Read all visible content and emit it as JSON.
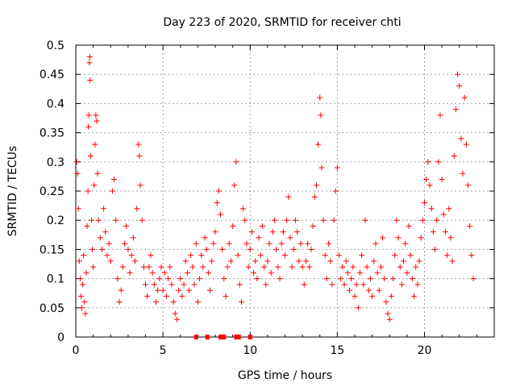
{
  "chart_data": {
    "type": "scatter",
    "title": "Day 223 of 2020, SRMTID for receiver chti",
    "xlabel": "GPS time / hours",
    "ylabel": "SRMTID / TECUs",
    "xlim": [
      0,
      24
    ],
    "ylim": [
      0,
      0.5
    ],
    "x_ticks": [
      0,
      5,
      10,
      15,
      20
    ],
    "x_tick_labels": [
      "0",
      "5",
      "10",
      "15",
      "20"
    ],
    "y_ticks": [
      0,
      0.05,
      0.1,
      0.15,
      0.2,
      0.25,
      0.3,
      0.35,
      0.4,
      0.45,
      0.5
    ],
    "y_tick_labels": [
      "0",
      "0.05",
      "0.1",
      "0.15",
      "0.2",
      "0.25",
      "0.3",
      "0.35",
      "0.4",
      "0.45",
      "0.5"
    ],
    "grid": true,
    "legend": "none",
    "marker": "plus",
    "marker_color": "#ff0000",
    "series": [
      {
        "name": "",
        "points": [
          [
            0.05,
            0.3
          ],
          [
            0.1,
            0.28
          ],
          [
            0.15,
            0.22
          ],
          [
            0.2,
            0.13
          ],
          [
            0.25,
            0.1
          ],
          [
            0.3,
            0.07
          ],
          [
            0.35,
            0.05
          ],
          [
            0.4,
            0.09
          ],
          [
            0.45,
            0.14
          ],
          [
            0.5,
            0.06
          ],
          [
            0.55,
            0.04
          ],
          [
            0.6,
            0.11
          ],
          [
            0.65,
            0.19
          ],
          [
            0.7,
            0.25
          ],
          [
            0.72,
            0.36
          ],
          [
            0.75,
            0.38
          ],
          [
            0.78,
            0.47
          ],
          [
            0.8,
            0.48
          ],
          [
            0.82,
            0.44
          ],
          [
            0.85,
            0.31
          ],
          [
            0.9,
            0.2
          ],
          [
            0.95,
            0.15
          ],
          [
            1.0,
            0.12
          ],
          [
            1.05,
            0.26
          ],
          [
            1.1,
            0.33
          ],
          [
            1.15,
            0.38
          ],
          [
            1.2,
            0.37
          ],
          [
            1.25,
            0.28
          ],
          [
            1.3,
            0.2
          ],
          [
            1.4,
            0.17
          ],
          [
            1.5,
            0.15
          ],
          [
            1.6,
            0.22
          ],
          [
            1.7,
            0.18
          ],
          [
            1.8,
            0.14
          ],
          [
            1.9,
            0.16
          ],
          [
            2.0,
            0.13
          ],
          [
            2.1,
            0.25
          ],
          [
            2.2,
            0.27
          ],
          [
            2.3,
            0.2
          ],
          [
            2.4,
            0.1
          ],
          [
            2.5,
            0.06
          ],
          [
            2.6,
            0.08
          ],
          [
            2.7,
            0.12
          ],
          [
            2.8,
            0.16
          ],
          [
            2.9,
            0.19
          ],
          [
            3.0,
            0.15
          ],
          [
            3.1,
            0.11
          ],
          [
            3.2,
            0.14
          ],
          [
            3.3,
            0.17
          ],
          [
            3.4,
            0.13
          ],
          [
            3.5,
            0.22
          ],
          [
            3.6,
            0.33
          ],
          [
            3.65,
            0.31
          ],
          [
            3.7,
            0.26
          ],
          [
            3.8,
            0.2
          ],
          [
            3.9,
            0.12
          ],
          [
            4.0,
            0.09
          ],
          [
            4.1,
            0.07
          ],
          [
            4.2,
            0.12
          ],
          [
            4.3,
            0.14
          ],
          [
            4.4,
            0.11
          ],
          [
            4.5,
            0.09
          ],
          [
            4.6,
            0.06
          ],
          [
            4.7,
            0.08
          ],
          [
            4.8,
            0.1
          ],
          [
            4.9,
            0.12
          ],
          [
            5.0,
            0.08
          ],
          [
            5.1,
            0.11
          ],
          [
            5.2,
            0.07
          ],
          [
            5.3,
            0.1
          ],
          [
            5.4,
            0.12
          ],
          [
            5.5,
            0.09
          ],
          [
            5.6,
            0.06
          ],
          [
            5.7,
            0.04
          ],
          [
            5.8,
            0.03
          ],
          [
            5.9,
            0.08
          ],
          [
            6.0,
            0.1
          ],
          [
            6.1,
            0.07
          ],
          [
            6.2,
            0.09
          ],
          [
            6.3,
            0.13
          ],
          [
            6.4,
            0.11
          ],
          [
            6.5,
            0.08
          ],
          [
            6.6,
            0.14
          ],
          [
            6.7,
            0.12
          ],
          [
            6.8,
            0.09
          ],
          [
            6.9,
            0.16
          ],
          [
            7.0,
            0.06
          ],
          [
            7.1,
            0.1
          ],
          [
            7.2,
            0.14
          ],
          [
            7.3,
            0.12
          ],
          [
            7.4,
            0.17
          ],
          [
            7.5,
            0.15
          ],
          [
            7.6,
            0.11
          ],
          [
            7.7,
            0.08
          ],
          [
            7.8,
            0.13
          ],
          [
            7.9,
            0.16
          ],
          [
            8.0,
            0.18
          ],
          [
            8.1,
            0.23
          ],
          [
            8.2,
            0.25
          ],
          [
            8.3,
            0.21
          ],
          [
            8.4,
            0.15
          ],
          [
            8.5,
            0.1
          ],
          [
            8.6,
            0.07
          ],
          [
            8.7,
            0.12
          ],
          [
            8.8,
            0.16
          ],
          [
            8.9,
            0.13
          ],
          [
            9.0,
            0.19
          ],
          [
            9.1,
            0.26
          ],
          [
            9.2,
            0.3
          ],
          [
            9.3,
            0.14
          ],
          [
            9.4,
            0.09
          ],
          [
            9.5,
            0.06
          ],
          [
            9.6,
            0.22
          ],
          [
            9.7,
            0.2
          ],
          [
            9.8,
            0.16
          ],
          [
            9.9,
            0.12
          ],
          [
            10.0,
            0.15
          ],
          [
            10.1,
            0.18
          ],
          [
            10.2,
            0.11
          ],
          [
            10.3,
            0.13
          ],
          [
            10.4,
            0.1
          ],
          [
            10.5,
            0.17
          ],
          [
            10.6,
            0.14
          ],
          [
            10.7,
            0.19
          ],
          [
            10.8,
            0.12
          ],
          [
            10.9,
            0.09
          ],
          [
            11.0,
            0.13
          ],
          [
            11.1,
            0.16
          ],
          [
            11.2,
            0.11
          ],
          [
            11.3,
            0.18
          ],
          [
            11.4,
            0.2
          ],
          [
            11.5,
            0.15
          ],
          [
            11.6,
            0.12
          ],
          [
            11.7,
            0.1
          ],
          [
            11.8,
            0.16
          ],
          [
            11.9,
            0.18
          ],
          [
            12.0,
            0.14
          ],
          [
            12.1,
            0.2
          ],
          [
            12.2,
            0.24
          ],
          [
            12.3,
            0.17
          ],
          [
            12.4,
            0.12
          ],
          [
            12.5,
            0.15
          ],
          [
            12.6,
            0.2
          ],
          [
            12.7,
            0.18
          ],
          [
            12.8,
            0.13
          ],
          [
            12.9,
            0.16
          ],
          [
            13.0,
            0.12
          ],
          [
            13.1,
            0.09
          ],
          [
            13.2,
            0.13
          ],
          [
            13.3,
            0.16
          ],
          [
            13.4,
            0.12
          ],
          [
            13.5,
            0.15
          ],
          [
            13.6,
            0.19
          ],
          [
            13.7,
            0.24
          ],
          [
            13.8,
            0.26
          ],
          [
            13.9,
            0.33
          ],
          [
            14.0,
            0.41
          ],
          [
            14.05,
            0.38
          ],
          [
            14.1,
            0.29
          ],
          [
            14.2,
            0.2
          ],
          [
            14.3,
            0.14
          ],
          [
            14.4,
            0.1
          ],
          [
            14.5,
            0.16
          ],
          [
            14.6,
            0.13
          ],
          [
            14.7,
            0.09
          ],
          [
            14.8,
            0.2
          ],
          [
            14.9,
            0.25
          ],
          [
            15.0,
            0.29
          ],
          [
            15.1,
            0.14
          ],
          [
            15.2,
            0.1
          ],
          [
            15.3,
            0.12
          ],
          [
            15.4,
            0.09
          ],
          [
            15.5,
            0.13
          ],
          [
            15.6,
            0.11
          ],
          [
            15.7,
            0.08
          ],
          [
            15.8,
            0.1
          ],
          [
            15.9,
            0.12
          ],
          [
            16.0,
            0.07
          ],
          [
            16.1,
            0.09
          ],
          [
            16.2,
            0.05
          ],
          [
            16.3,
            0.11
          ],
          [
            16.4,
            0.14
          ],
          [
            16.5,
            0.09
          ],
          [
            16.6,
            0.2
          ],
          [
            16.7,
            0.12
          ],
          [
            16.8,
            0.08
          ],
          [
            16.9,
            0.1
          ],
          [
            17.0,
            0.07
          ],
          [
            17.1,
            0.13
          ],
          [
            17.2,
            0.16
          ],
          [
            17.3,
            0.11
          ],
          [
            17.4,
            0.08
          ],
          [
            17.5,
            0.12
          ],
          [
            17.6,
            0.17
          ],
          [
            17.7,
            0.1
          ],
          [
            17.8,
            0.06
          ],
          [
            17.9,
            0.04
          ],
          [
            18.0,
            0.03
          ],
          [
            18.1,
            0.07
          ],
          [
            18.2,
            0.1
          ],
          [
            18.3,
            0.14
          ],
          [
            18.4,
            0.2
          ],
          [
            18.5,
            0.17
          ],
          [
            18.6,
            0.12
          ],
          [
            18.7,
            0.09
          ],
          [
            18.8,
            0.13
          ],
          [
            18.9,
            0.16
          ],
          [
            19.0,
            0.11
          ],
          [
            19.1,
            0.19
          ],
          [
            19.2,
            0.14
          ],
          [
            19.3,
            0.1
          ],
          [
            19.4,
            0.07
          ],
          [
            19.5,
            0.12
          ],
          [
            19.6,
            0.09
          ],
          [
            19.7,
            0.13
          ],
          [
            19.8,
            0.17
          ],
          [
            19.9,
            0.2
          ],
          [
            20.0,
            0.23
          ],
          [
            20.1,
            0.27
          ],
          [
            20.2,
            0.3
          ],
          [
            20.3,
            0.26
          ],
          [
            20.4,
            0.22
          ],
          [
            20.5,
            0.18
          ],
          [
            20.6,
            0.15
          ],
          [
            20.7,
            0.2
          ],
          [
            20.8,
            0.3
          ],
          [
            20.9,
            0.38
          ],
          [
            21.0,
            0.27
          ],
          [
            21.1,
            0.21
          ],
          [
            21.2,
            0.18
          ],
          [
            21.3,
            0.14
          ],
          [
            21.4,
            0.22
          ],
          [
            21.5,
            0.17
          ],
          [
            21.6,
            0.13
          ],
          [
            21.7,
            0.31
          ],
          [
            21.8,
            0.39
          ],
          [
            21.9,
            0.45
          ],
          [
            22.0,
            0.43
          ],
          [
            22.1,
            0.34
          ],
          [
            22.2,
            0.28
          ],
          [
            22.3,
            0.41
          ],
          [
            22.4,
            0.33
          ],
          [
            22.5,
            0.26
          ],
          [
            22.6,
            0.19
          ],
          [
            22.7,
            0.14
          ],
          [
            22.8,
            0.1
          ]
        ]
      }
    ],
    "zero_markers": [
      {
        "x": 6.9,
        "y": 0
      },
      {
        "x": 7.55,
        "y": 0
      },
      {
        "x": 8.3,
        "y": 0
      },
      {
        "x": 8.5,
        "y": 0
      },
      {
        "x": 9.2,
        "y": 0
      },
      {
        "x": 9.35,
        "y": 0
      },
      {
        "x": 10.0,
        "y": 0
      }
    ]
  }
}
